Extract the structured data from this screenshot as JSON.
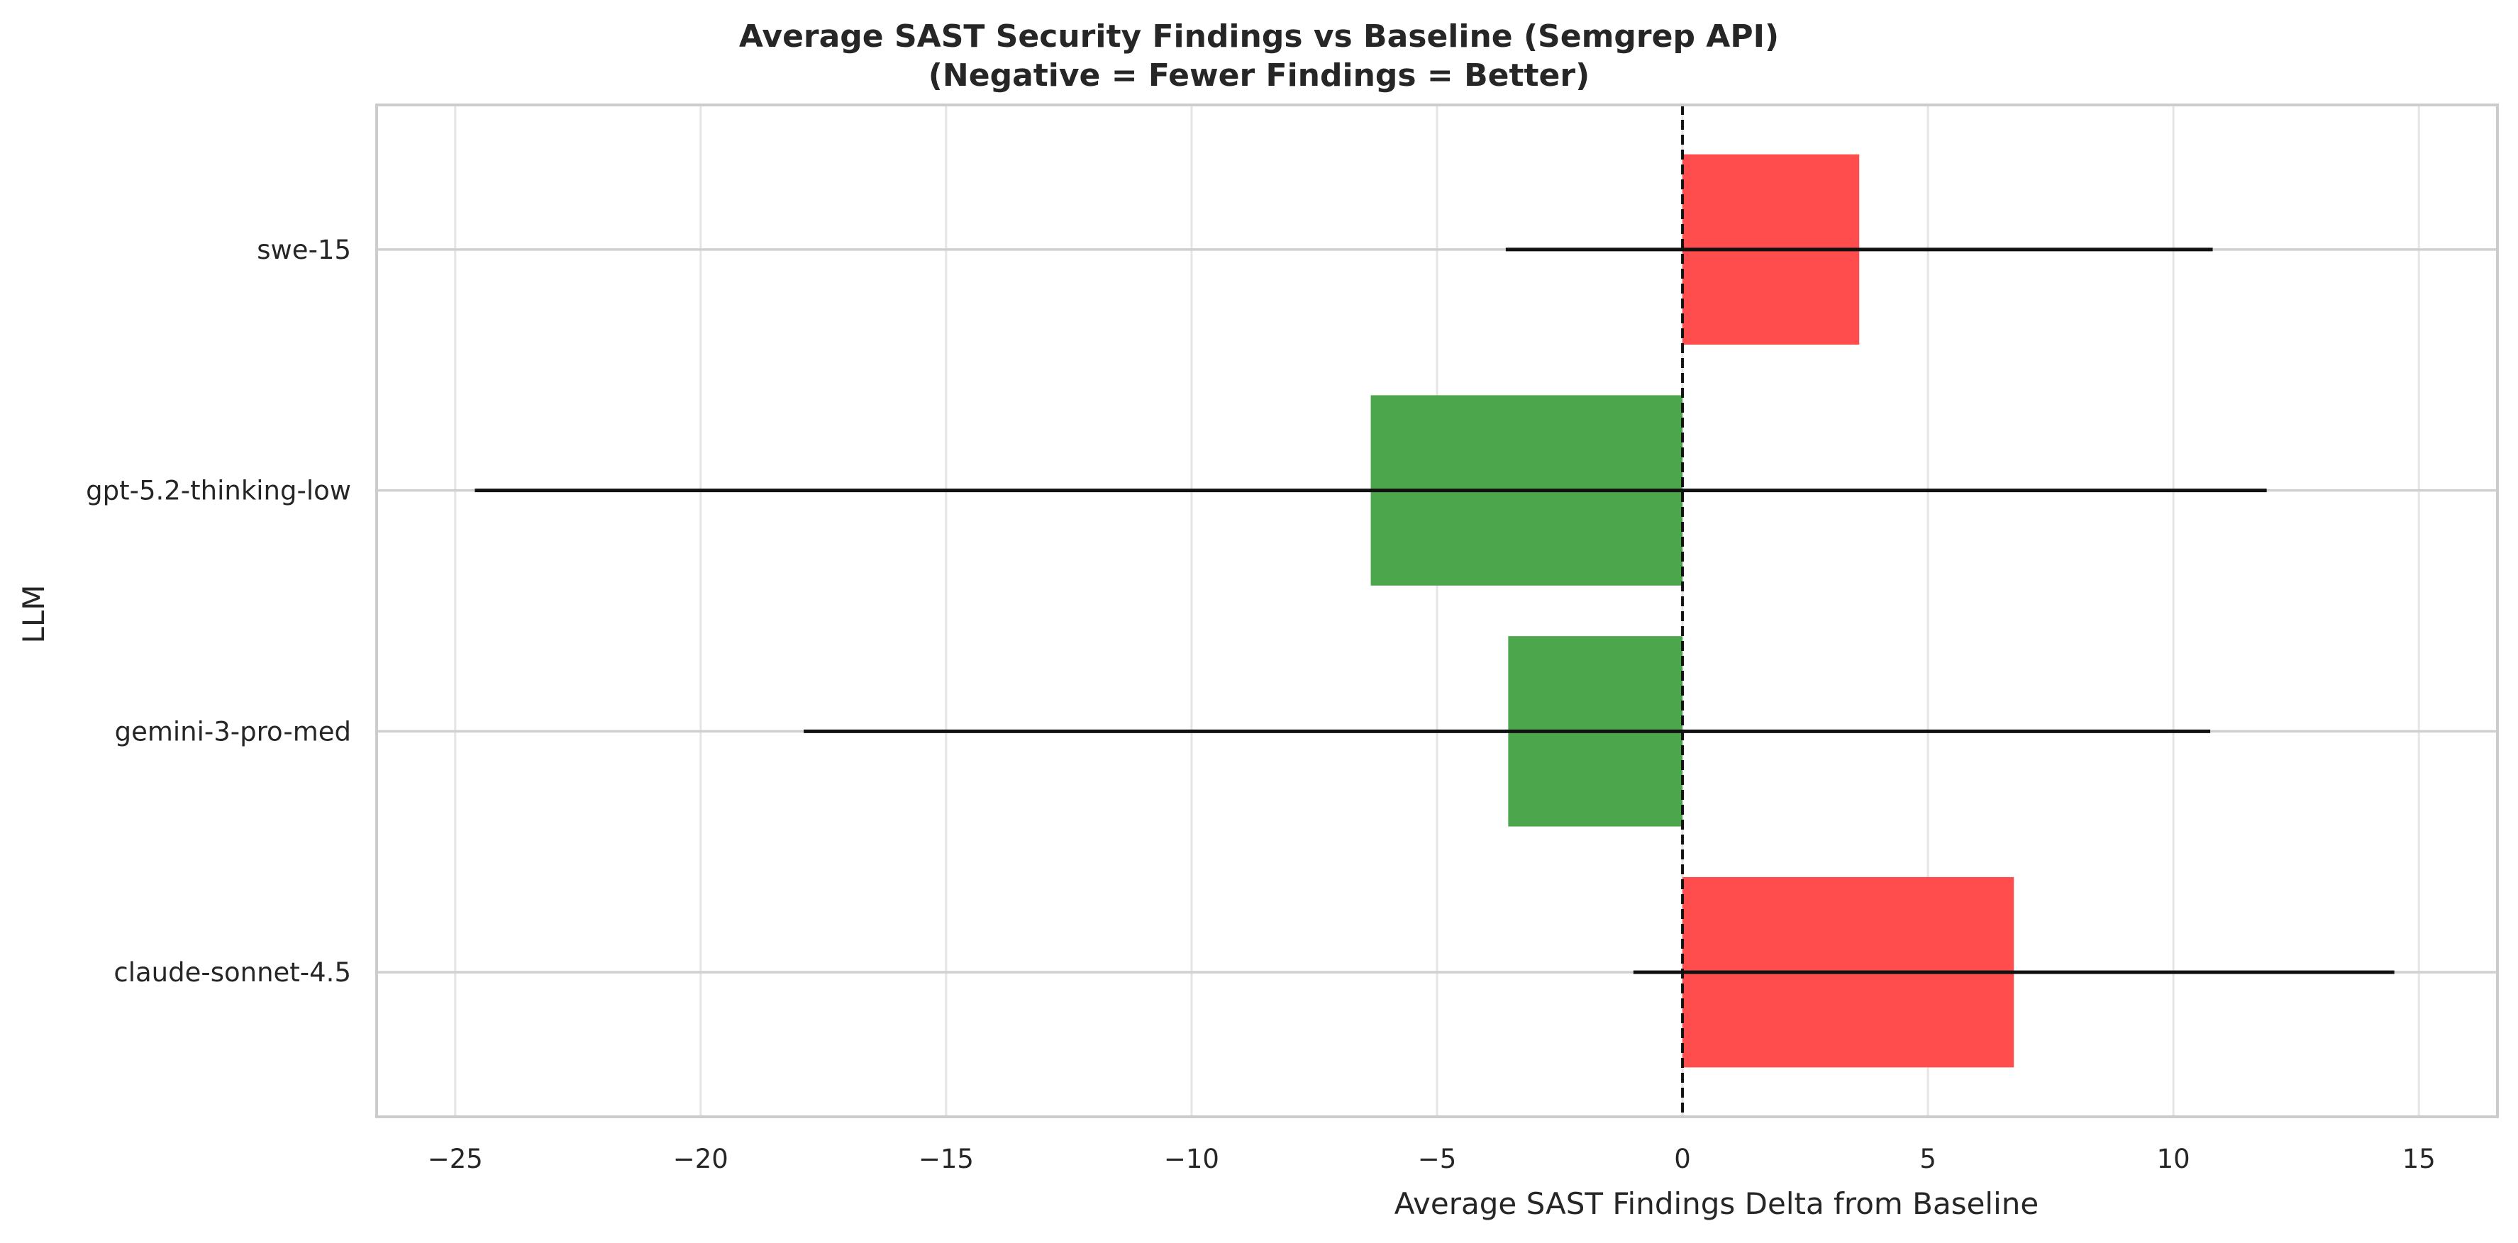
{
  "chart_data": {
    "type": "bar",
    "orientation": "horizontal",
    "title": "Average SAST Security Findings vs Baseline (Semgrep API)",
    "subtitle": "(Negative = Fewer Findings = Better)",
    "xlabel": "Average SAST Findings Delta from Baseline",
    "ylabel": "LLM",
    "xlim": [
      -26.6,
      16.6
    ],
    "xticks": [
      -25,
      -20,
      -15,
      -10,
      -5,
      0,
      5,
      10,
      15
    ],
    "xtick_labels": [
      "−25",
      "−20",
      "−15",
      "−10",
      "−5",
      "0",
      "5",
      "10",
      "15"
    ],
    "categories": [
      "swe-15",
      "gpt-5.2-thinking-low",
      "gemini-3-pro-med",
      "claude-sonnet-4.5"
    ],
    "values": [
      3.6,
      -6.35,
      -3.55,
      6.75
    ],
    "error_low": [
      -3.6,
      -24.6,
      -17.9,
      -1.0
    ],
    "error_high": [
      10.8,
      11.9,
      10.75,
      14.5
    ],
    "colors": {
      "positive": "#ff4d4d",
      "negative": "#4ca64c",
      "error_bar": "#111111",
      "zero_line": "#111111",
      "grid": "#e5e5e5",
      "frame": "#cccccc"
    },
    "grid": true,
    "zero_line": "dashed"
  }
}
